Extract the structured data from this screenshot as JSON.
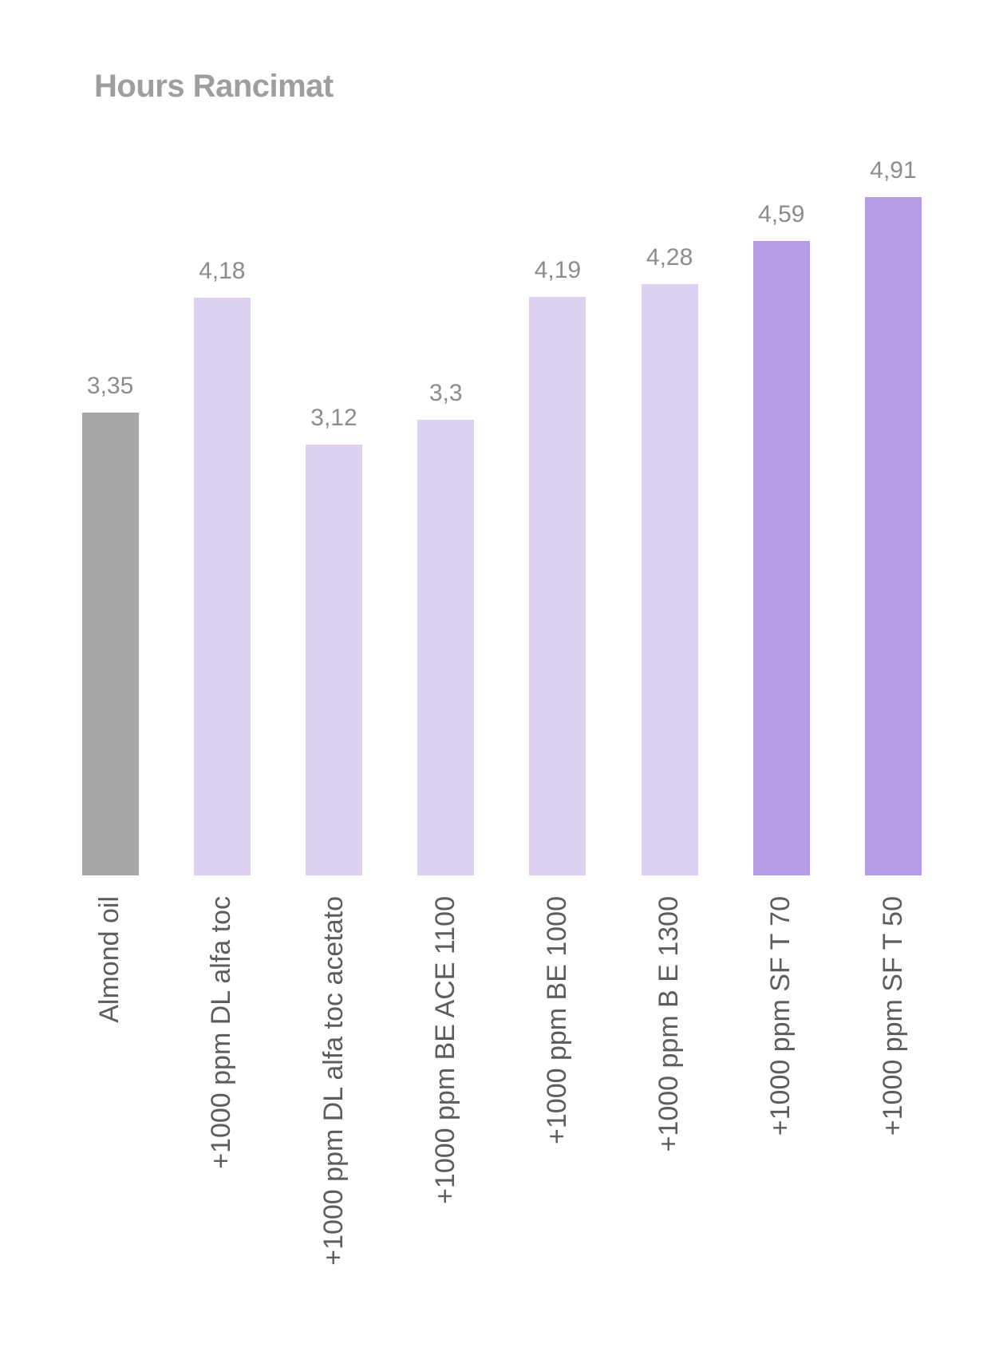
{
  "chart_data": {
    "type": "bar",
    "title": "Hours Rancimat",
    "categories": [
      "Almond oil",
      "+1000 ppm DL alfa toc",
      "+1000 ppm DL alfa toc acetato",
      "+1000 ppm BE ACE 1100",
      "+1000 ppm BE 1000",
      "+1000 ppm B E 1300",
      "+1000 ppm SF T 70",
      "+1000 ppm SF T 50"
    ],
    "values": [
      3.35,
      4.18,
      3.12,
      3.3,
      4.19,
      4.28,
      4.59,
      4.91
    ],
    "value_labels": [
      "3,35",
      "4,18",
      "3,12",
      "3,3",
      "4,19",
      "4,28",
      "4,59",
      "4,91"
    ],
    "bar_colors": [
      "#a7a7a7",
      "#dcd1f1",
      "#dcd1f1",
      "#dcd1f1",
      "#dcd1f1",
      "#dcd1f1",
      "#b59de6",
      "#b59de6"
    ],
    "decimal_separator": ",",
    "xlabel": "",
    "ylabel": "",
    "ylim": [
      0,
      5.2
    ],
    "grid": false,
    "axis_lines_visible": false,
    "legend": "none",
    "value_labels_position": "above-bars",
    "category_labels_rotation_deg": 90
  },
  "colors": {
    "background": "#ffffff",
    "title_text": "#9e9e9e",
    "value_label_text": "#8c8c8c",
    "category_label_text": "#5d5d5d",
    "baseline_series": "#a7a7a7",
    "light_series": "#dcd1f1",
    "highlight_series": "#b59de6"
  }
}
